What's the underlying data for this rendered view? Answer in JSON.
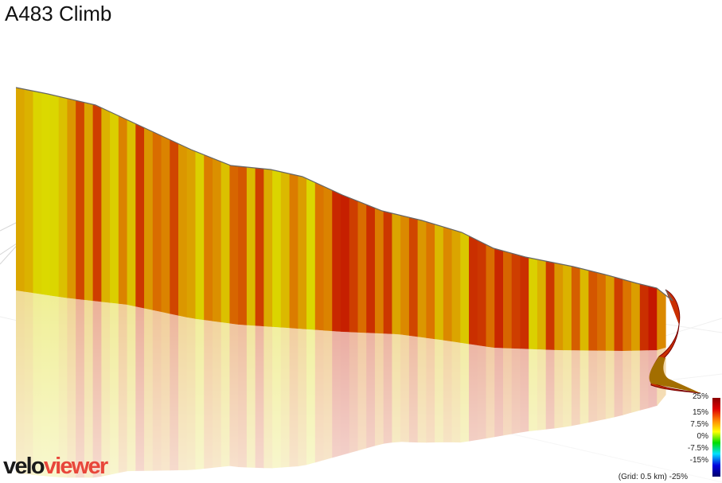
{
  "title": "A483 Climb",
  "logo": {
    "part1": "velo",
    "part2": "viewer"
  },
  "legend": {
    "ticks": [
      "25%",
      "15%",
      "7.5%",
      "0%",
      "-7.5%",
      "-15%"
    ],
    "tick_values": [
      25,
      15,
      7.5,
      0,
      -7.5,
      -15
    ],
    "grid_note": "(Grid: 0.5 km)",
    "min_label": "-25%",
    "gradient_colors": [
      "#8b0000",
      "#dd0000",
      "#ff8800",
      "#ffff00",
      "#00dd00",
      "#00e0ff",
      "#0000dd",
      "#00006b"
    ]
  },
  "chart_data": {
    "type": "area",
    "title": "A483 Climb",
    "view": "3d-elevation-profile",
    "color_scale": {
      "min_percent": -25,
      "max_percent": 25
    },
    "grid_spacing_km": 0.5,
    "segment_grades_percent": [
      3.8,
      3.0,
      0.5,
      0.2,
      0.4,
      2.0,
      5.0,
      10.5,
      4.0,
      11.0,
      3.0,
      1.0,
      6.5,
      2.0,
      11.5,
      5.0,
      8.0,
      6.5,
      10.5,
      5.0,
      4.2,
      0.8,
      7.0,
      5.5,
      2.0,
      8.5,
      9.5,
      2.5,
      11.0,
      3.5,
      0.5,
      2.5,
      7.0,
      4.5,
      0.3,
      7.5,
      6.5,
      12.5,
      13.0,
      11.0,
      8.0,
      12.0,
      7.0,
      11.5,
      4.0,
      6.0,
      10.5,
      5.0,
      7.5,
      2.5,
      6.0,
      4.0,
      1.5,
      12.0,
      11.5,
      8.0,
      12.5,
      8.5,
      11.0,
      12.0,
      0.8,
      3.0,
      11.5,
      5.0,
      3.0,
      9.0,
      2.5,
      9.5,
      8.0,
      4.5,
      11.0,
      7.5,
      4.5,
      12.0,
      13.5,
      6.0
    ]
  }
}
